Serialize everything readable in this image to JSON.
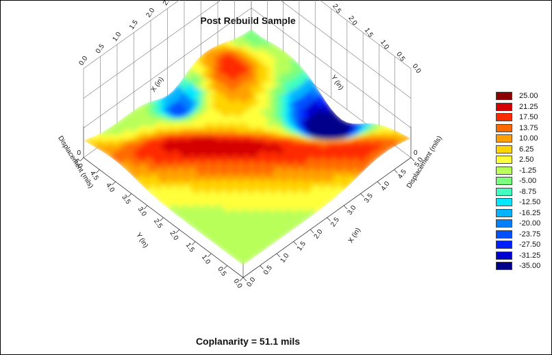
{
  "chart_data": {
    "type": "surface",
    "title": "Post Rebuild Sample",
    "footer": "Coplanarity = 51.1 mils",
    "x_axis": {
      "label_front": "X (in)",
      "label_back": "X (in)",
      "ticks": [
        "0.0",
        "0.5",
        "1.0",
        "1.5",
        "2.0",
        "2.5",
        "3.0",
        "3.5",
        "4.0",
        "4.5",
        "5.0"
      ],
      "range": [
        0,
        5
      ]
    },
    "y_axis": {
      "label_front": "Y (in)",
      "label_back": "Y (in)",
      "ticks": [
        "0.0",
        "0.5",
        "1.0",
        "1.5",
        "2.0",
        "2.5",
        "3.0",
        "3.5",
        "4.0",
        "4.5",
        "5.0"
      ],
      "range": [
        0,
        5
      ]
    },
    "z_axis": {
      "label_left": "Displacement (mils)",
      "label_right": "Displacement (mils)",
      "ticks": [
        "0",
        "0"
      ]
    },
    "legend": {
      "levels": [
        "25.00",
        "21.25",
        "17.50",
        "13.75",
        "10.00",
        "6.25",
        "2.50",
        "-1.25",
        "-5.00",
        "-8.75",
        "-12.50",
        "-16.25",
        "-20.00",
        "-23.75",
        "-27.50",
        "-31.25",
        "-35.00"
      ],
      "colors": [
        "#8b0000",
        "#d40000",
        "#ff2a00",
        "#ff6a00",
        "#ffa000",
        "#ffd400",
        "#ffff3a",
        "#b8ff5a",
        "#7cff7c",
        "#40ffc0",
        "#00e8ff",
        "#00b4ff",
        "#0080ff",
        "#0050ff",
        "#0020ff",
        "#0000d0",
        "#00008b"
      ],
      "position": "right"
    },
    "grid": true
  }
}
